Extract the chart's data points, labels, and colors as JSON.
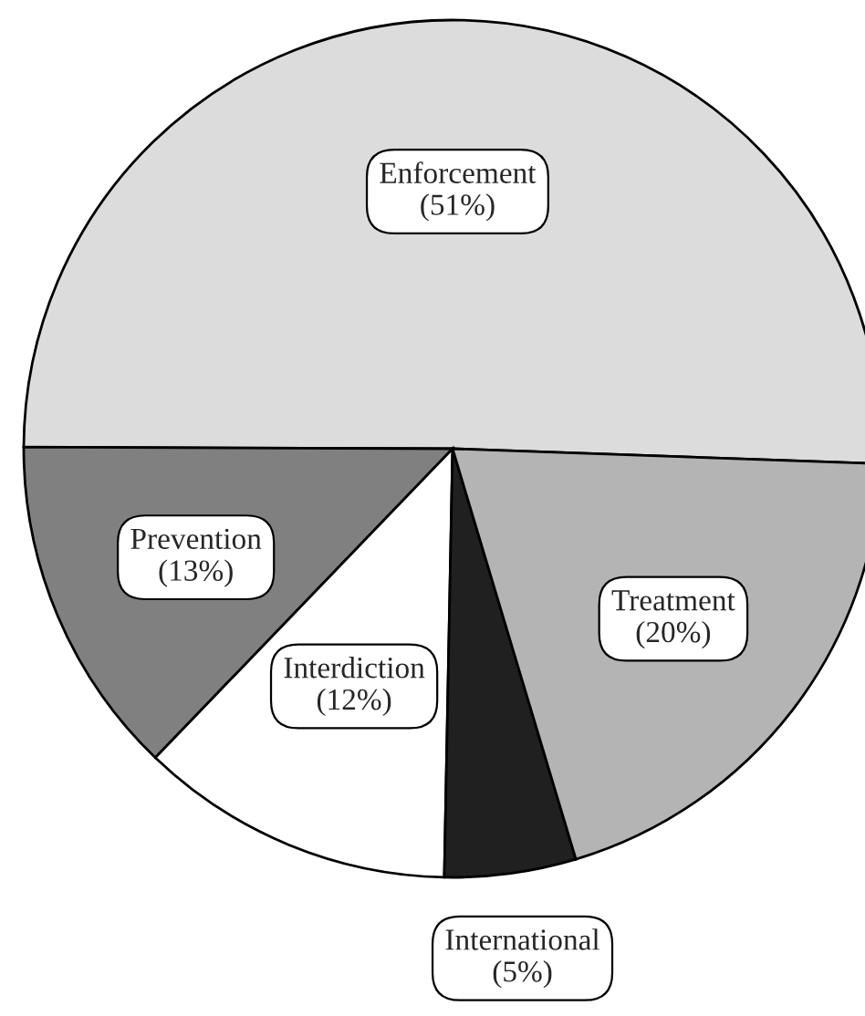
{
  "chart_data": {
    "type": "pie",
    "categories": [
      "Enforcement",
      "Prevention",
      "Interdiction",
      "International",
      "Treatment"
    ],
    "values": [
      51,
      13,
      12,
      5,
      20
    ],
    "value_labels": [
      "(51%)",
      "(13%)",
      "(12%)",
      "(5%)",
      "(20%)"
    ],
    "colors": [
      "#dcdcdc",
      "#808080",
      "#ffffff",
      "#202020",
      "#b4b4b4"
    ],
    "legend": false
  }
}
